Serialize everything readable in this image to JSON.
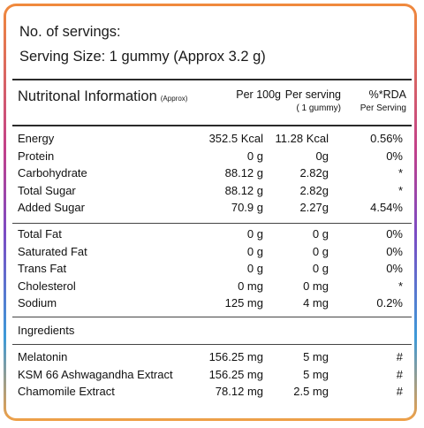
{
  "header": {
    "servings": "No. of servings:",
    "serving_size": "Serving Size: 1 gummy (Approx 3.2 g)"
  },
  "table_head": {
    "title": "Nutritonal Information",
    "title_note": "(Approx)",
    "col1": "Per 100g",
    "col2_line1": "Per serving",
    "col2_line2": "( 1 gummy)",
    "col3_line1": "%*RDA",
    "col3_line2": "Per Serving"
  },
  "group1": [
    {
      "name": "Energy",
      "per100": "352.5 Kcal",
      "serving": "11.28 Kcal",
      "rda": "0.56%"
    },
    {
      "name": "Protein",
      "per100": "0 g",
      "serving": "0g",
      "rda": "0%"
    },
    {
      "name": "Carbohydrate",
      "per100": "88.12 g",
      "serving": "2.82g",
      "rda": "*"
    },
    {
      "name": "Total Sugar",
      "per100": "88.12 g",
      "serving": "2.82g",
      "rda": "*"
    },
    {
      "name": "Added Sugar",
      "per100": "70.9 g",
      "serving": "2.27g",
      "rda": "4.54%"
    }
  ],
  "group2": [
    {
      "name": "Total Fat",
      "per100": "0 g",
      "serving": "0 g",
      "rda": "0%"
    },
    {
      "name": "Saturated Fat",
      "per100": "0 g",
      "serving": "0 g",
      "rda": "0%"
    },
    {
      "name": "Trans Fat",
      "per100": "0 g",
      "serving": "0 g",
      "rda": "0%"
    },
    {
      "name": "Cholesterol",
      "per100": "0 mg",
      "serving": "0 mg",
      "rda": "*"
    },
    {
      "name": "Sodium",
      "per100": "125 mg",
      "serving": "4 mg",
      "rda": "0.2%"
    }
  ],
  "ingredients_label": "Ingredients",
  "group3": [
    {
      "name": "Melatonin",
      "per100": "156.25 mg",
      "serving": "5 mg",
      "rda": "#"
    },
    {
      "name": "KSM 66 Ashwagandha Extract",
      "per100": "156.25 mg",
      "serving": "5 mg",
      "rda": "#"
    },
    {
      "name": "Chamomile Extract",
      "per100": "78.12 mg",
      "serving": "2.5 mg",
      "rda": "#"
    }
  ]
}
